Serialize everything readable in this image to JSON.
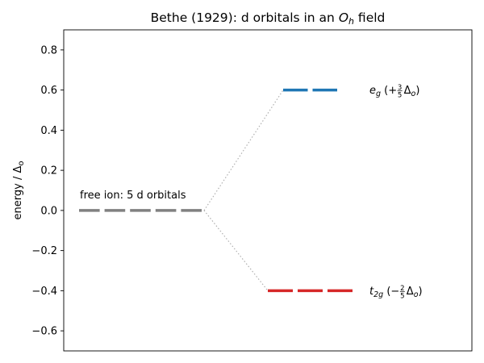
{
  "chart_data": {
    "type": "energy-level-diagram",
    "title": {
      "text": "Bethe (1929): d orbitals in an ",
      "oh_main": "O",
      "oh_sub": "h",
      "tail": " field"
    },
    "ylabel": {
      "prefix": "energy / Δ",
      "sub": "o"
    },
    "xlabel": "",
    "ylim": [
      -0.7,
      0.9
    ],
    "y_ticks": [
      -0.6,
      -0.4,
      -0.2,
      0.0,
      0.2,
      0.4,
      0.6,
      0.8
    ],
    "y_tick_labels": [
      "−0.6",
      "−0.4",
      "−0.2",
      "0.0",
      "0.2",
      "0.4",
      "0.6",
      "0.8"
    ],
    "x_ticks_shown": false,
    "grid": false,
    "levels": [
      {
        "group": "free-ion",
        "energy": 0.0,
        "count": 5,
        "color": "#808080",
        "label": "free ion: 5 d orbitals"
      },
      {
        "group": "e_g",
        "energy": 0.6,
        "count": 2,
        "color": "#1f77b4",
        "label": {
          "main": "e",
          "sub": "g",
          "open": " (+",
          "num": "3",
          "den": "5",
          "delta": "Δ",
          "dsub": "o",
          "close": ")"
        }
      },
      {
        "group": "t_2g",
        "energy": -0.4,
        "count": 3,
        "color": "#d62728",
        "label": {
          "main": "t",
          "sub": "2g",
          "open": " (−",
          "num": "2",
          "den": "5",
          "delta": "Δ",
          "dsub": "o",
          "close": ")"
        }
      }
    ],
    "connector_color": "#b0b0b0"
  }
}
